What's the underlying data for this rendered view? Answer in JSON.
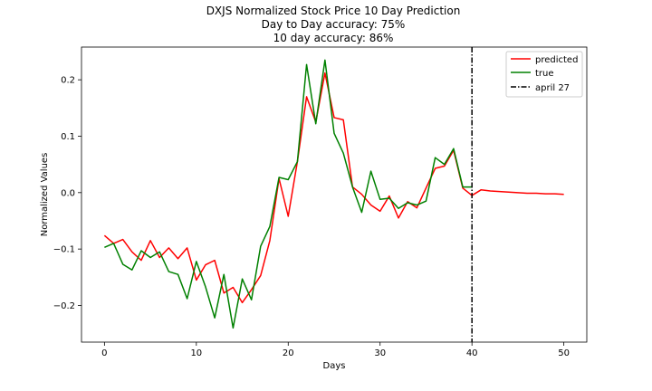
{
  "chart_data": {
    "type": "line",
    "title": [
      "DXJS Normalized Stock Price 10 Day Prediction",
      "Day to Day accuracy: 75%",
      "10 day accuracy: 86%"
    ],
    "xlabel": "Days",
    "ylabel": "Normalized Values",
    "xlim": [
      -2.5,
      52.5
    ],
    "ylim": [
      -0.265,
      0.258
    ],
    "xticks": [
      0,
      10,
      20,
      30,
      40,
      50
    ],
    "yticks": [
      -0.2,
      -0.1,
      0.0,
      0.1,
      0.2
    ],
    "xtick_labels": [
      "0",
      "10",
      "20",
      "30",
      "40",
      "50"
    ],
    "ytick_labels": [
      "−0.2",
      "−0.1",
      "0.0",
      "0.1",
      "0.2"
    ],
    "grid": false,
    "legend_position": "top-right",
    "series": [
      {
        "name": "predicted",
        "color": "#ff0000",
        "x": [
          0,
          1,
          2,
          3,
          4,
          5,
          6,
          7,
          8,
          9,
          10,
          11,
          12,
          13,
          14,
          15,
          16,
          17,
          18,
          19,
          20,
          21,
          22,
          23,
          24,
          25,
          26,
          27,
          28,
          29,
          30,
          31,
          32,
          33,
          34,
          35,
          36,
          37,
          38,
          39,
          40,
          41,
          42,
          43,
          44,
          45,
          46,
          47,
          48,
          49,
          50
        ],
        "values": [
          -0.076,
          -0.09,
          -0.083,
          -0.105,
          -0.12,
          -0.085,
          -0.115,
          -0.098,
          -0.117,
          -0.098,
          -0.155,
          -0.128,
          -0.12,
          -0.178,
          -0.168,
          -0.195,
          -0.172,
          -0.147,
          -0.085,
          0.025,
          -0.042,
          0.055,
          0.17,
          0.125,
          0.212,
          0.133,
          0.129,
          0.01,
          -0.003,
          -0.022,
          -0.033,
          -0.006,
          -0.045,
          -0.016,
          -0.027,
          0.008,
          0.043,
          0.047,
          0.075,
          0.008,
          -0.005,
          0.005,
          0.003,
          0.002,
          0.001,
          0.0,
          -0.001,
          -0.001,
          -0.002,
          -0.002,
          -0.003
        ]
      },
      {
        "name": "true",
        "color": "#008000",
        "x": [
          0,
          1,
          2,
          3,
          4,
          5,
          6,
          7,
          8,
          9,
          10,
          11,
          12,
          13,
          14,
          15,
          16,
          17,
          18,
          19,
          20,
          21,
          22,
          23,
          24,
          25,
          26,
          27,
          28,
          29,
          30,
          31,
          32,
          33,
          34,
          35,
          36,
          37,
          38,
          39,
          40
        ],
        "values": [
          -0.097,
          -0.09,
          -0.127,
          -0.137,
          -0.103,
          -0.115,
          -0.105,
          -0.14,
          -0.145,
          -0.188,
          -0.122,
          -0.167,
          -0.222,
          -0.145,
          -0.24,
          -0.153,
          -0.19,
          -0.095,
          -0.06,
          0.027,
          0.023,
          0.055,
          0.227,
          0.122,
          0.235,
          0.105,
          0.07,
          0.01,
          -0.035,
          0.038,
          -0.012,
          -0.01,
          -0.028,
          -0.018,
          -0.022,
          -0.015,
          0.062,
          0.05,
          0.078,
          0.01,
          0.01
        ]
      }
    ],
    "vline": {
      "name": "april 27",
      "x": 40,
      "color": "#000000",
      "style": "dash-dot"
    }
  }
}
